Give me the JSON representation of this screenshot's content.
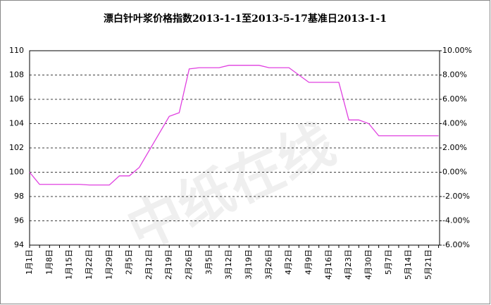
{
  "chart_data": {
    "type": "line",
    "title": "漂白针叶浆价格指数2013-1-1至2013-5-17基准日2013-1-1",
    "watermark": "中纸在线",
    "categories": [
      "1月1日",
      null,
      "1月8日",
      null,
      "1月15日",
      null,
      "1月22日",
      null,
      "1月29日",
      null,
      "2月5日",
      null,
      "2月12日",
      null,
      "2月19日",
      null,
      "2月26日",
      null,
      "3月5日",
      null,
      "3月12日",
      null,
      "3月19日",
      null,
      "3月26日",
      null,
      "4月2日",
      null,
      "4月9日",
      null,
      "4月16日",
      null,
      "4月23日",
      null,
      "4月30日",
      null,
      "5月7日",
      null,
      "5月14日",
      null,
      "5月21日",
      null
    ],
    "series": [
      {
        "color": "#e040e0",
        "values": [
          100,
          99.0,
          99.0,
          99.0,
          99.0,
          99.0,
          98.95,
          98.95,
          98.95,
          99.7,
          99.7,
          100.4,
          101.8,
          103.2,
          104.6,
          104.9,
          108.5,
          108.6,
          108.6,
          108.6,
          108.8,
          108.8,
          108.8,
          108.8,
          108.6,
          108.6,
          108.6,
          108.0,
          107.4,
          107.4,
          107.4,
          107.4,
          104.3,
          104.3,
          104.0,
          103.0,
          103.0,
          103.0,
          103.0,
          103.0,
          103.0,
          103.0
        ]
      }
    ],
    "ylim": [
      94,
      110
    ],
    "yticks": [
      94,
      96,
      98,
      100,
      102,
      104,
      106,
      108,
      110
    ],
    "y2lim": [
      -6,
      10
    ],
    "y2ticks": [
      {
        "value": -6,
        "label": "-6.00%"
      },
      {
        "value": -4,
        "label": "-4.00%"
      },
      {
        "value": -2,
        "label": "-2.00%"
      },
      {
        "value": 0,
        "label": "0.00%"
      },
      {
        "value": 2,
        "label": "2.00%"
      },
      {
        "value": 4,
        "label": "4.00%"
      },
      {
        "value": 6,
        "label": "6.00%"
      },
      {
        "value": 8,
        "label": "8.00%"
      },
      {
        "value": 10,
        "label": "10.00%"
      }
    ],
    "grid": true
  }
}
